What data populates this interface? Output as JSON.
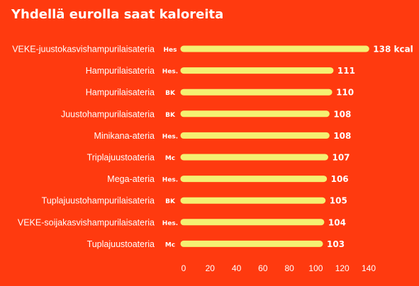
{
  "colors": {
    "background": "#ff3a0f",
    "bar": "#f5f072",
    "text": "#ffffff"
  },
  "chart_data": {
    "type": "bar",
    "orientation": "horizontal",
    "title": "Yhdellä eurolla saat kaloreita",
    "categories": [
      "VEKE-juustokasvishampurilaisateria",
      "Hampurilaisateria",
      "Hampurilaisateria",
      "Juustohampurilaisateria",
      "Minikana-ateria",
      "Triplajuustoateria",
      "Mega-ateria",
      "Tuplajuustohampurilaisateria",
      "VEKE-soijakasvishampurilaisateria",
      "Tuplajuustoateria"
    ],
    "brands": [
      "Hes",
      "Hes.",
      "BK",
      "BK",
      "Hes.",
      "Mc",
      "Hes.",
      "BK",
      "Hes.",
      "Mc"
    ],
    "values": [
      138,
      111,
      110,
      108,
      108,
      107,
      106,
      105,
      104,
      103
    ],
    "value_labels": [
      "138 kcal",
      "111",
      "110",
      "108",
      "108",
      "107",
      "106",
      "105",
      "104",
      "103"
    ],
    "xlim": [
      0,
      140
    ],
    "xticks": [
      "0",
      "20",
      "40",
      "60",
      "80",
      "100",
      "120",
      "140"
    ],
    "grid": false,
    "legend": "none"
  }
}
